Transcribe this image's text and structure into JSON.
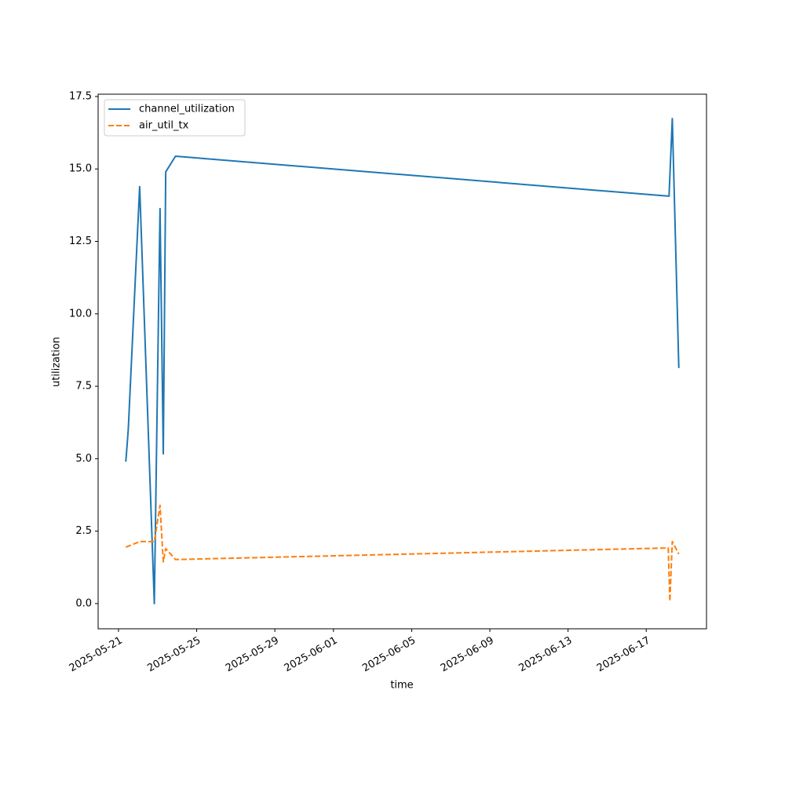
{
  "chart_data": {
    "type": "line",
    "xlabel": "time",
    "ylabel": "utilization",
    "xlim": [
      "2025-05-19T23:00",
      "2025-06-20T02:00"
    ],
    "ylim": [
      -0.87,
      17.58
    ],
    "xticks": [
      "2025-05-21",
      "2025-05-25",
      "2025-05-29",
      "2025-06-01",
      "2025-06-05",
      "2025-06-09",
      "2025-06-13",
      "2025-06-17"
    ],
    "yticks": [
      {
        "value": 0,
        "label": "0.0"
      },
      2.5,
      {
        "value": 5,
        "label": "5.0"
      },
      7.5,
      {
        "value": 10,
        "label": "10.0"
      },
      12.5,
      {
        "value": 15,
        "label": "15.0"
      },
      17.5
    ],
    "legend": "upper left",
    "series": [
      {
        "name": "channel_utilization",
        "color": "#1f77b4",
        "dash": "solid",
        "x": [
          "2025-05-21T09:00",
          "2025-05-21T12:00",
          "2025-05-22T02:00",
          "2025-05-22T20:00",
          "2025-05-23T03:00",
          "2025-05-23T07:00",
          "2025-05-23T10:00",
          "2025-05-23T22:00",
          "2025-06-18T04:00",
          "2025-06-18T08:00",
          "2025-06-18T16:00"
        ],
        "values": [
          4.9,
          6.0,
          14.39,
          0,
          13.63,
          5.17,
          14.9,
          15.44,
          14.06,
          16.74,
          8.13
        ]
      },
      {
        "name": "air_util_tx",
        "color": "#ff7f0e",
        "dash": "dashed",
        "x": [
          "2025-05-21T09:00",
          "2025-05-21T12:00",
          "2025-05-22T02:00",
          "2025-05-22T20:00",
          "2025-05-23T03:00",
          "2025-05-23T07:00",
          "2025-05-23T10:00",
          "2025-05-23T22:00",
          "2025-06-18T03:00",
          "2025-06-18T05:00",
          "2025-06-18T08:00",
          "2025-06-18T16:00"
        ],
        "values": [
          1.95,
          1.98,
          2.14,
          2.14,
          3.39,
          1.44,
          1.9,
          1.52,
          1.92,
          0.08,
          2.14,
          1.71
        ]
      }
    ]
  }
}
